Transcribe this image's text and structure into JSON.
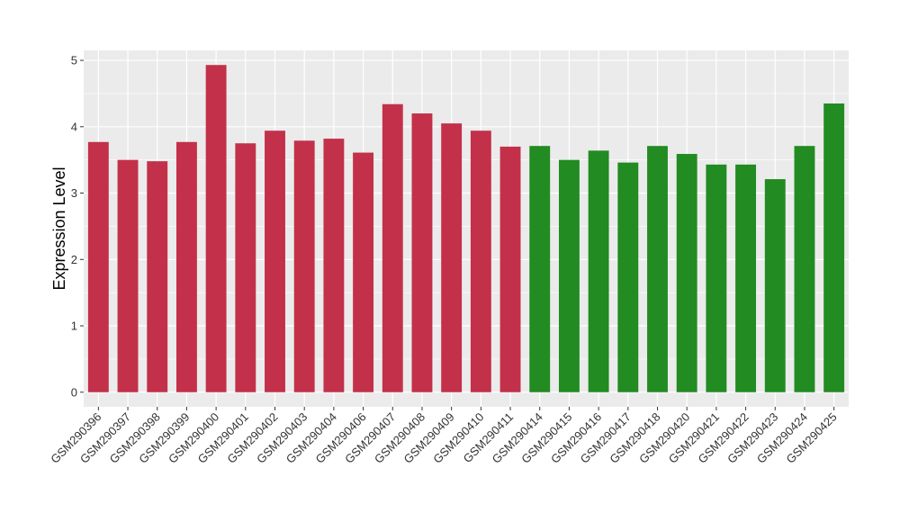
{
  "chart_data": {
    "type": "bar",
    "ylabel": "Expression Level",
    "xlabel": "",
    "ylim": [
      -0.22,
      5.15
    ],
    "yticks": [
      0,
      1,
      2,
      3,
      4,
      5
    ],
    "grid": true,
    "categories": [
      "GSM290396",
      "GSM290397",
      "GSM290398",
      "GSM290399",
      "GSM290400",
      "GSM290401",
      "GSM290402",
      "GSM290403",
      "GSM290404",
      "GSM290406",
      "GSM290407",
      "GSM290408",
      "GSM290409",
      "GSM290410",
      "GSM290411",
      "GSM290414",
      "GSM290415",
      "GSM290416",
      "GSM290417",
      "GSM290418",
      "GSM290420",
      "GSM290421",
      "GSM290422",
      "GSM290423",
      "GSM290424",
      "GSM290425"
    ],
    "values": [
      3.77,
      3.5,
      3.48,
      3.77,
      4.93,
      3.75,
      3.94,
      3.79,
      3.82,
      3.61,
      4.34,
      4.2,
      4.05,
      3.94,
      3.7,
      3.71,
      3.5,
      3.64,
      3.46,
      3.71,
      3.59,
      3.43,
      3.43,
      3.21,
      3.71,
      4.35
    ],
    "group_colors": [
      "#C3304A",
      "#C3304A",
      "#C3304A",
      "#C3304A",
      "#C3304A",
      "#C3304A",
      "#C3304A",
      "#C3304A",
      "#C3304A",
      "#C3304A",
      "#C3304A",
      "#C3304A",
      "#C3304A",
      "#C3304A",
      "#C3304A",
      "#228B22",
      "#228B22",
      "#228B22",
      "#228B22",
      "#228B22",
      "#228B22",
      "#228B22",
      "#228B22",
      "#228B22",
      "#228B22",
      "#228B22"
    ],
    "panel_background": "#EBEBEB",
    "grid_color": "#FFFFFF"
  }
}
